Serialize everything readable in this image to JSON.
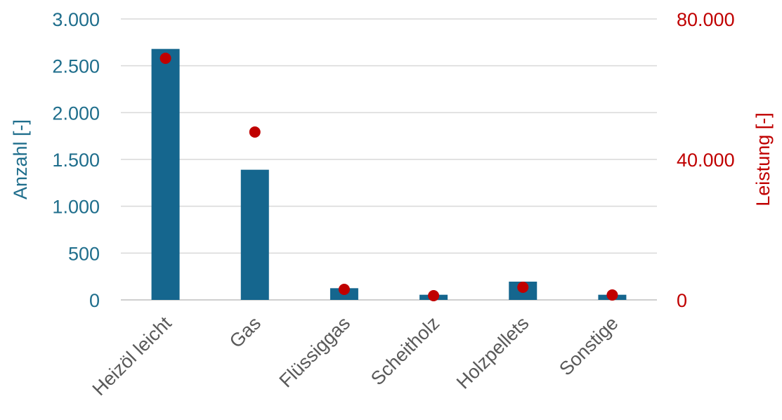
{
  "chart_data": {
    "type": "bar",
    "categories": [
      "Heizöl leicht",
      "Gas",
      "Flüssiggas",
      "Scheitholz",
      "Holzpellets",
      "Sonstige"
    ],
    "series": [
      {
        "name": "Anzahl",
        "type": "bar",
        "axis": "left",
        "values": [
          2680,
          1390,
          125,
          55,
          195,
          55
        ],
        "color": "#15668e"
      },
      {
        "name": "Leistung",
        "type": "scatter",
        "axis": "right",
        "values": [
          68800,
          47800,
          3000,
          1200,
          3600,
          1400
        ],
        "color": "#c00000"
      }
    ],
    "ylabel": "Anzahl [-]",
    "y2label": "Leistung [-]",
    "ylim": [
      0,
      3000
    ],
    "y2lim": [
      0,
      80000
    ],
    "yticks": [
      0,
      500,
      1000,
      1500,
      2000,
      2500,
      3000
    ],
    "yticklabels": [
      "0",
      "500",
      "1.000",
      "1.500",
      "2.000",
      "2.500",
      "3.000"
    ],
    "y2ticks": [
      0,
      40000,
      80000
    ],
    "y2ticklabels": [
      "0",
      "40.000",
      "80.000"
    ],
    "grid": true,
    "legend": "none"
  }
}
